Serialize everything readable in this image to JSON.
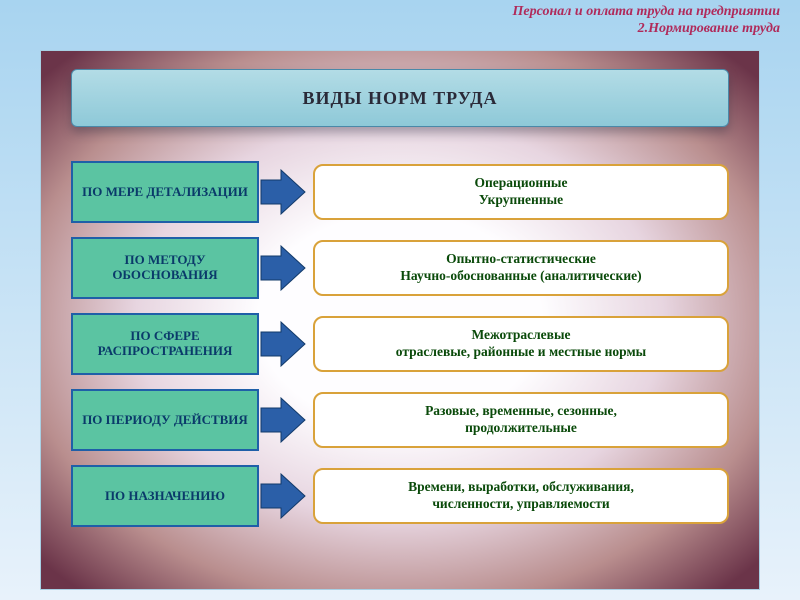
{
  "colors": {
    "header_text": "#b02a5a",
    "title_text": "#2a2a38",
    "cat_bg": "#5bc4a2",
    "cat_border": "#1f5fa8",
    "cat_text": "#0a3a6a",
    "arrow_fill": "#2b5fa8",
    "desc_bg": "#ffffff",
    "desc_border": "#d9a23a",
    "desc_text": "#0a4a0a"
  },
  "header": {
    "line1": "Персонал и оплата труда на предприятии",
    "line2": "2.Нормирование труда"
  },
  "title": "ВИДЫ НОРМ ТРУДА",
  "rows": [
    {
      "category": "ПО МЕРЕ ДЕТАЛИЗАЦИИ",
      "desc": [
        "Операционные",
        "Укрупненные"
      ]
    },
    {
      "category": "ПО МЕТОДУ ОБОСНОВАНИЯ",
      "desc": [
        "Опытно-статистические",
        "Научно-обоснованные (аналитические)"
      ]
    },
    {
      "category": "ПО СФЕРЕ РАСПРОСТРАНЕНИЯ",
      "desc": [
        "Межотраслевые",
        "отраслевые, районные и местные нормы"
      ]
    },
    {
      "category": "ПО ПЕРИОДУ ДЕЙСТВИЯ",
      "desc": [
        "Разовые, временные, сезонные,",
        "продолжительные"
      ]
    },
    {
      "category": "ПО НАЗНАЧЕНИЮ",
      "desc": [
        "Времени, выработки, обслуживания,",
        "численности, управляемости"
      ]
    }
  ]
}
